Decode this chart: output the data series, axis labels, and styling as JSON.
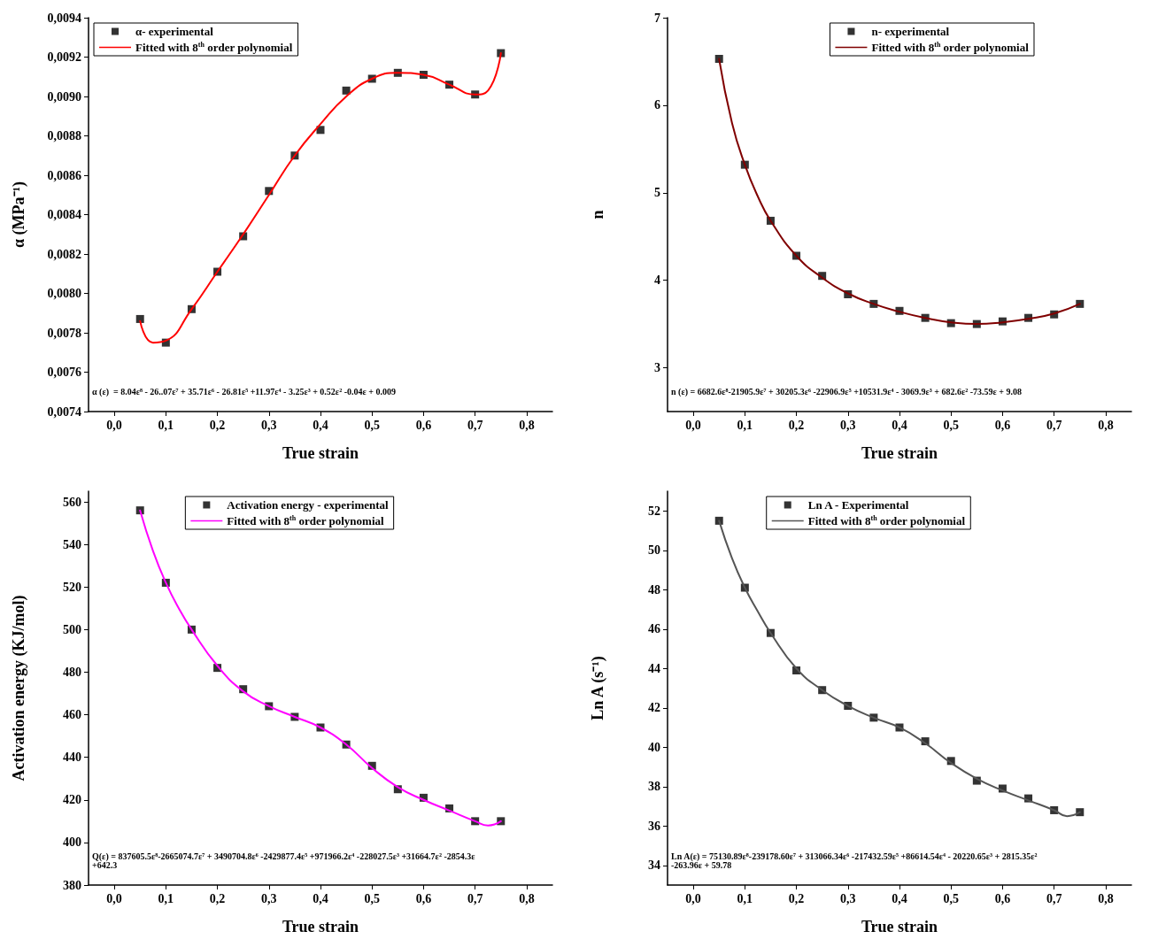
{
  "chart_data": [
    {
      "type": "scatter",
      "xlabel": "True strain",
      "ylabel": "α (MPa⁻¹)",
      "xlim": [
        -0.05,
        0.85
      ],
      "ylim": [
        0.0074,
        0.0094
      ],
      "xticks": [
        {
          "value": 0,
          "label": "0,0"
        },
        {
          "value": 0.1,
          "label": "0,1"
        },
        {
          "value": 0.2,
          "label": "0,2"
        },
        {
          "value": 0.3,
          "label": "0,3"
        },
        {
          "value": 0.4,
          "label": "0,4"
        },
        {
          "value": 0.5,
          "label": "0,5"
        },
        {
          "value": 0.6,
          "label": "0,6"
        },
        {
          "value": 0.7,
          "label": "0,7"
        },
        {
          "value": 0.8,
          "label": "0,8"
        }
      ],
      "yticks": [
        {
          "value": 0.0074,
          "label": "0,0074"
        },
        {
          "value": 0.0076,
          "label": "0,0076"
        },
        {
          "value": 0.0078,
          "label": "0,0078"
        },
        {
          "value": 0.008,
          "label": "0,0080"
        },
        {
          "value": 0.0082,
          "label": "0,0082"
        },
        {
          "value": 0.0084,
          "label": "0,0084"
        },
        {
          "value": 0.0086,
          "label": "0,0086"
        },
        {
          "value": 0.0088,
          "label": "0,0088"
        },
        {
          "value": 0.009,
          "label": "0,0090"
        },
        {
          "value": 0.0092,
          "label": "0,0092"
        },
        {
          "value": 0.0094,
          "label": "0,0094"
        }
      ],
      "legend": "top left",
      "grid": false,
      "annotations": [
        "α (ε)  = 8.04ε⁸ - 26..07ε⁷ + 35.71ε⁶ - 26.81ε⁵ +11.97ε⁴ - 3.25ε³ + 0.52ε² -0.04ε + 0.009"
      ],
      "series": [
        {
          "name": "α- experimental",
          "marker": "square",
          "color": "#000000",
          "x": [
            0.05,
            0.1,
            0.15,
            0.2,
            0.25,
            0.3,
            0.35,
            0.4,
            0.45,
            0.5,
            0.55,
            0.6,
            0.65,
            0.7,
            0.75
          ],
          "values": [
            0.00787,
            0.00775,
            0.00792,
            0.00811,
            0.00829,
            0.00852,
            0.0087,
            0.00883,
            0.00903,
            0.00909,
            0.00912,
            0.00911,
            0.00906,
            0.00901,
            0.00922
          ]
        },
        {
          "name": "Fitted with 8$^{th}$ order polynomial",
          "type": "line",
          "marker": "none",
          "line_style": "solid",
          "color": "#ff0000",
          "x": [
            0.05,
            0.075,
            0.1,
            0.15,
            0.2,
            0.25,
            0.3,
            0.35,
            0.4,
            0.45,
            0.5,
            0.55,
            0.6,
            0.65,
            0.7,
            0.725,
            0.75
          ],
          "values": [
            0.00786,
            0.00775,
            0.00776,
            0.00792,
            0.00811,
            0.0083,
            0.0085,
            0.0087,
            0.00886,
            0.009,
            0.00909,
            0.00912,
            0.00911,
            0.00906,
            0.00901,
            0.00903,
            0.00922
          ]
        }
      ]
    },
    {
      "type": "scatter",
      "xlabel": "True strain",
      "ylabel": "n",
      "xlim": [
        -0.05,
        0.85
      ],
      "ylim": [
        2.5,
        7
      ],
      "xticks": [
        {
          "value": 0,
          "label": "0,0"
        },
        {
          "value": 0.1,
          "label": "0,1"
        },
        {
          "value": 0.2,
          "label": "0,2"
        },
        {
          "value": 0.3,
          "label": "0,3"
        },
        {
          "value": 0.4,
          "label": "0,4"
        },
        {
          "value": 0.5,
          "label": "0,5"
        },
        {
          "value": 0.6,
          "label": "0,6"
        },
        {
          "value": 0.7,
          "label": "0,7"
        },
        {
          "value": 0.8,
          "label": "0,8"
        }
      ],
      "yticks": [
        3,
        4,
        5,
        6,
        7
      ],
      "legend": "top right",
      "grid": false,
      "annotations": [
        "n (ε) = 6682.6ε⁸-21905.9ε⁷ + 30205.3ε⁶ -22906.9ε⁵ +10531.9ε⁴ - 3069.9ε³ + 682.6ε² -73.59ε + 9.08"
      ],
      "series": [
        {
          "name": "n- experimental",
          "marker": "square",
          "color": "#000000",
          "x": [
            0.05,
            0.1,
            0.15,
            0.2,
            0.25,
            0.3,
            0.35,
            0.4,
            0.45,
            0.5,
            0.55,
            0.6,
            0.65,
            0.7,
            0.75
          ],
          "values": [
            6.53,
            5.32,
            4.68,
            4.28,
            4.05,
            3.84,
            3.73,
            3.65,
            3.57,
            3.51,
            3.5,
            3.53,
            3.57,
            3.61,
            3.73
          ]
        },
        {
          "name": "Fitted with 8$^{th}$ order polynomial",
          "type": "line",
          "marker": "none",
          "line_style": "solid",
          "color": "#800000",
          "x": [
            0.05,
            0.075,
            0.1,
            0.125,
            0.15,
            0.2,
            0.25,
            0.3,
            0.35,
            0.4,
            0.45,
            0.5,
            0.55,
            0.6,
            0.65,
            0.7,
            0.75
          ],
          "values": [
            6.53,
            5.8,
            5.32,
            4.96,
            4.68,
            4.28,
            4.03,
            3.85,
            3.73,
            3.64,
            3.57,
            3.52,
            3.5,
            3.52,
            3.56,
            3.62,
            3.73
          ]
        }
      ]
    },
    {
      "type": "scatter",
      "xlabel": "True strain",
      "ylabel": "Activation energy (KJ/mol)",
      "xlim": [
        -0.05,
        0.85
      ],
      "ylim": [
        380,
        565
      ],
      "xticks": [
        {
          "value": 0,
          "label": "0,0"
        },
        {
          "value": 0.1,
          "label": "0,1"
        },
        {
          "value": 0.2,
          "label": "0,2"
        },
        {
          "value": 0.3,
          "label": "0,3"
        },
        {
          "value": 0.4,
          "label": "0,4"
        },
        {
          "value": 0.5,
          "label": "0,5"
        },
        {
          "value": 0.6,
          "label": "0,6"
        },
        {
          "value": 0.7,
          "label": "0,7"
        },
        {
          "value": 0.8,
          "label": "0,8"
        }
      ],
      "yticks": [
        380,
        400,
        420,
        440,
        460,
        480,
        500,
        520,
        540,
        560
      ],
      "legend": "top",
      "grid": false,
      "annotations": [
        "Q(ε) = 837605.5ε⁸-2665074.7ε⁷ + 3490704.8ε⁶ -2429877.4ε⁵ +971966.2ε⁴ -228027.5ε³ +31664.7ε² -2854.3ε +642.3"
      ],
      "series": [
        {
          "name": "Activation energy - experimental",
          "marker": "square",
          "color": "#000000",
          "x": [
            0.05,
            0.1,
            0.15,
            0.2,
            0.25,
            0.3,
            0.35,
            0.4,
            0.45,
            0.5,
            0.55,
            0.6,
            0.65,
            0.7,
            0.75
          ],
          "values": [
            556,
            522,
            500,
            482,
            472,
            464,
            459,
            454,
            446,
            436,
            425,
            421,
            416,
            410,
            410
          ]
        },
        {
          "name": "Fitted with 8$^{th}$ order polynomial",
          "type": "line",
          "marker": "none",
          "line_style": "solid",
          "color": "#ff00ff",
          "x": [
            0.05,
            0.075,
            0.1,
            0.125,
            0.15,
            0.2,
            0.25,
            0.3,
            0.35,
            0.4,
            0.45,
            0.5,
            0.55,
            0.6,
            0.65,
            0.7,
            0.725,
            0.75
          ],
          "values": [
            556,
            537,
            522,
            510,
            500,
            483,
            471,
            464,
            459,
            454,
            446,
            435,
            426,
            420,
            415,
            410,
            408,
            410
          ]
        }
      ]
    },
    {
      "type": "scatter",
      "xlabel": "True strain",
      "ylabel": "Ln A (s⁻¹)",
      "xlim": [
        -0.05,
        0.85
      ],
      "ylim": [
        33,
        53
      ],
      "xticks": [
        {
          "value": 0,
          "label": "0,0"
        },
        {
          "value": 0.1,
          "label": "0,1"
        },
        {
          "value": 0.2,
          "label": "0,2"
        },
        {
          "value": 0.3,
          "label": "0,3"
        },
        {
          "value": 0.4,
          "label": "0,4"
        },
        {
          "value": 0.5,
          "label": "0,5"
        },
        {
          "value": 0.6,
          "label": "0,6"
        },
        {
          "value": 0.7,
          "label": "0,7"
        },
        {
          "value": 0.8,
          "label": "0,8"
        }
      ],
      "yticks": [
        34,
        36,
        38,
        40,
        42,
        44,
        46,
        48,
        50,
        52
      ],
      "legend": "top",
      "grid": false,
      "annotations": [
        "Ln A(ε) = 75130.89ε⁸-239178.60ε⁷ + 313066.34ε⁶ -217432.59ε⁵ +86614.54ε⁴ - 20220.65ε³ + 2815.35ε² -263.96ε + 59.78"
      ],
      "series": [
        {
          "name": "Ln A - Experimental",
          "marker": "square",
          "color": "#000000",
          "x": [
            0.05,
            0.1,
            0.15,
            0.2,
            0.25,
            0.3,
            0.35,
            0.4,
            0.45,
            0.5,
            0.55,
            0.6,
            0.65,
            0.7,
            0.75
          ],
          "values": [
            51.5,
            48.1,
            45.8,
            43.9,
            42.9,
            42.1,
            41.5,
            41,
            40.3,
            39.3,
            38.3,
            37.9,
            37.4,
            36.8,
            36.7
          ]
        },
        {
          "name": "Fitted with 8$^{th}$ order polynomial",
          "type": "line",
          "marker": "none",
          "line_style": "solid",
          "color": "#555555",
          "x": [
            0.05,
            0.075,
            0.1,
            0.125,
            0.15,
            0.2,
            0.25,
            0.3,
            0.35,
            0.4,
            0.45,
            0.5,
            0.55,
            0.6,
            0.65,
            0.7,
            0.725,
            0.75
          ],
          "values": [
            51.5,
            49.6,
            48.1,
            46.9,
            45.8,
            44,
            42.9,
            42.1,
            41.5,
            41,
            40.2,
            39.2,
            38.4,
            37.8,
            37.3,
            36.8,
            36.5,
            36.7
          ]
        }
      ]
    }
  ]
}
